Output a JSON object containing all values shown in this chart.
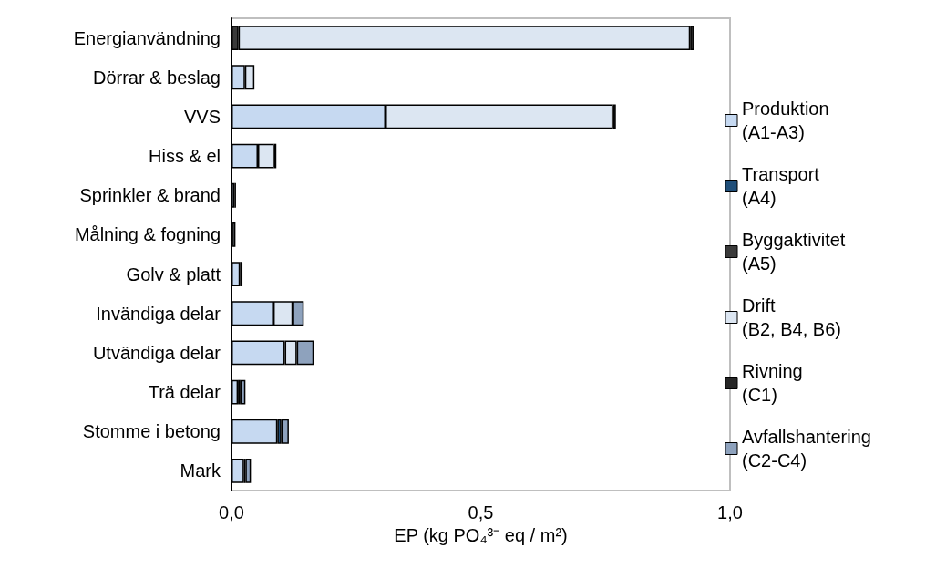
{
  "chart_data": {
    "type": "bar",
    "orientation": "horizontal",
    "stacked": true,
    "xlabel": "EP (kg PO₄³⁻ eq / m²)",
    "categories": [
      "Energianvändning",
      "Dörrar & beslag",
      "VVS",
      "Hiss & el",
      "Sprinkler & brand",
      "Målning & fogning",
      "Golv & platt",
      "Invändiga delar",
      "Utvändiga delar",
      "Trä delar",
      "Stomme i betong",
      "Mark"
    ],
    "series": [
      {
        "name": "Produktion (A1-A3)",
        "color": "#c6d9f1",
        "values": [
          0,
          0.027,
          0.309,
          0.053,
          0.006,
          null,
          0.017,
          0.084,
          0.107,
          0.013,
          0.092,
          0.025
        ]
      },
      {
        "name": "Transport (A4)",
        "color": "#1f4e79",
        "values": [
          0,
          0,
          0,
          0,
          0,
          0,
          0,
          0,
          0,
          0,
          0.008,
          0
        ]
      },
      {
        "name": "Byggaktivitet (A5)",
        "color": "#3a3a3a",
        "values": [
          0.014,
          0,
          0,
          0,
          0,
          0.002,
          0,
          0,
          0,
          0.005,
          0,
          0.003
        ]
      },
      {
        "name": "Drift (B2, B4, B6)",
        "color": "#dce6f2",
        "values": [
          0.906,
          0.019,
          0.456,
          0.032,
          0,
          0.006,
          0,
          0.039,
          0.024,
          0,
          0,
          0
        ]
      },
      {
        "name": "Rivning (C1)",
        "color": "#262626",
        "values": [
          0.008,
          0,
          0.006,
          0.005,
          0.003,
          0,
          0.005,
          0,
          0,
          0,
          0,
          0
        ]
      },
      {
        "name": "Avfallshantering (C2-C4)",
        "color": "#8ea2bd",
        "values": [
          0,
          0,
          0,
          0,
          0,
          0,
          0,
          0.022,
          0.034,
          0.01,
          0.015,
          0.011
        ]
      }
    ],
    "xlim": [
      0,
      1
    ],
    "xticks": [
      {
        "value": 0,
        "label": "0,0"
      },
      {
        "value": 0.5,
        "label": "0,5"
      },
      {
        "value": 1,
        "label": "1,0"
      }
    ],
    "grid": false,
    "legend": "right"
  }
}
